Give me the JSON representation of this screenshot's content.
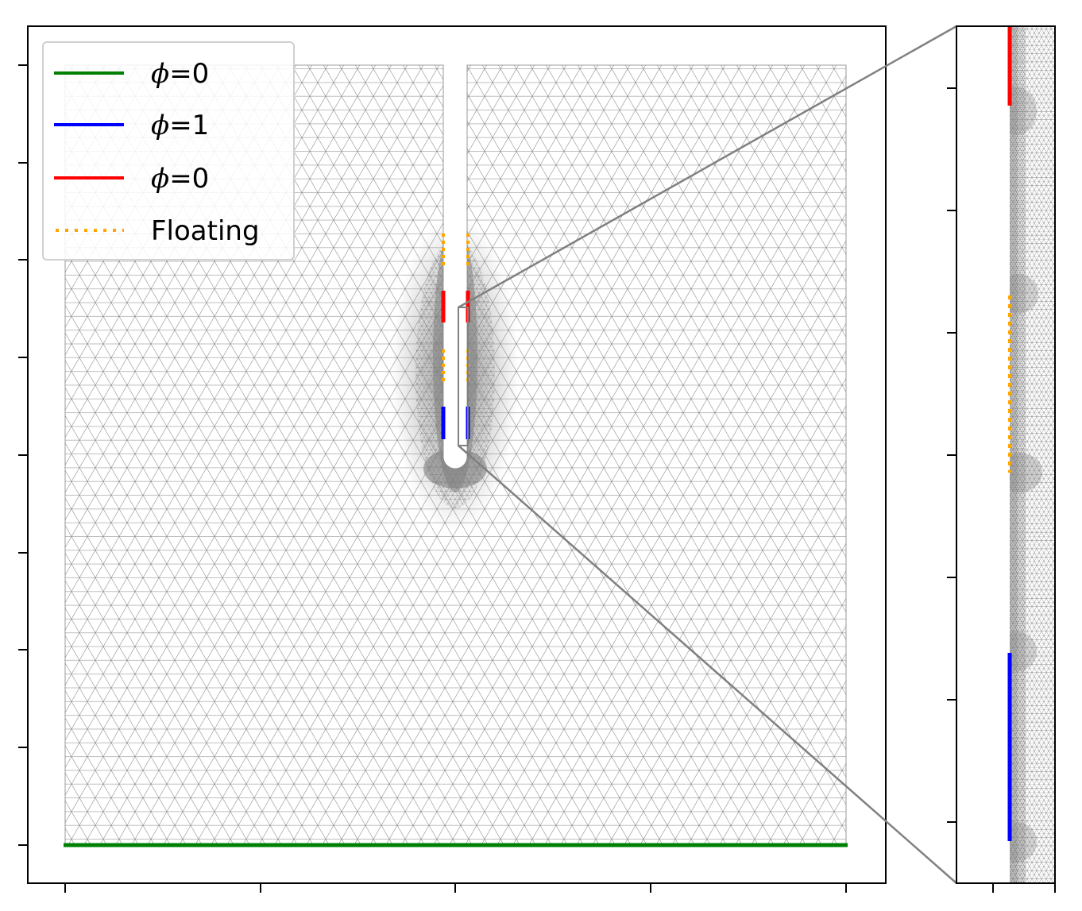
{
  "legend": {
    "items": [
      {
        "symbol": "ϕ",
        "label": "=0",
        "color": "#008000",
        "style": "solid"
      },
      {
        "symbol": "ϕ",
        "label": "=1",
        "color": "#0000ff",
        "style": "solid"
      },
      {
        "symbol": "ϕ",
        "label": "=0",
        "color": "#ff0000",
        "style": "solid"
      },
      {
        "symbol": "",
        "label": "Floating",
        "color": "#ffa500",
        "style": "dotted"
      }
    ]
  },
  "colors": {
    "mesh": "#808080",
    "axes": "#000000",
    "zoom_connector": "#808080"
  }
}
